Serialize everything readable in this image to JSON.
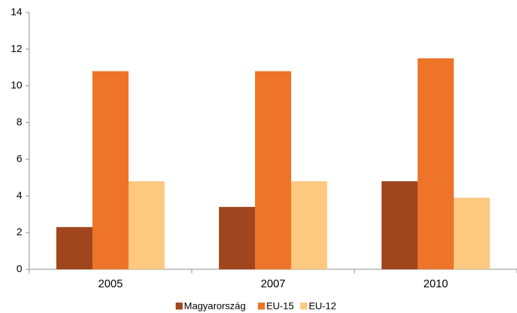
{
  "chart_data": {
    "type": "bar",
    "categories": [
      "2005",
      "2007",
      "2010"
    ],
    "series": [
      {
        "name": "Magyarország",
        "color": "#a0461e",
        "values": [
          2.3,
          3.4,
          4.8
        ]
      },
      {
        "name": "EU-15",
        "color": "#ed7428",
        "values": [
          10.8,
          10.8,
          11.5
        ]
      },
      {
        "name": "EU-12",
        "color": "#fdc980",
        "values": [
          4.8,
          4.8,
          3.9
        ]
      }
    ],
    "ylim": [
      0,
      14
    ],
    "yticks": [
      0,
      2,
      4,
      6,
      8,
      10,
      12,
      14
    ],
    "grid": false,
    "legend": "bottom"
  }
}
